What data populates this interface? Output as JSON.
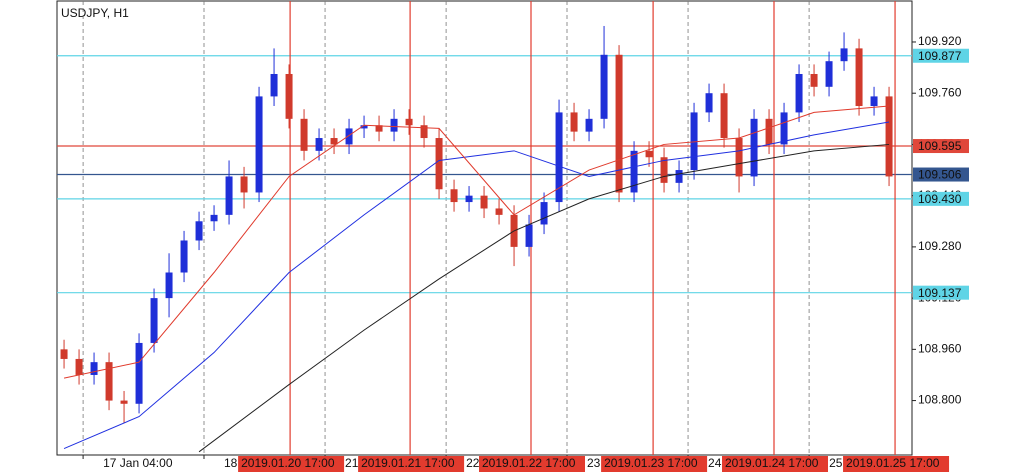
{
  "chart_data": {
    "type": "candlestick",
    "title": "USDJPY, H1",
    "ylim": [
      108.63,
      110.048
    ],
    "xlim": [
      -0.47,
      56.53
    ],
    "yticks": [
      {
        "value": 109.92,
        "label": "109.920"
      },
      {
        "value": 109.76,
        "label": "109.760"
      },
      {
        "value": 109.6,
        "label": "109.600"
      },
      {
        "value": 109.44,
        "label": "109.440"
      },
      {
        "value": 109.28,
        "label": "109.280"
      },
      {
        "value": 109.12,
        "label": "109.120"
      },
      {
        "value": 108.96,
        "label": "108.960"
      },
      {
        "value": 108.8,
        "label": "108.800"
      }
    ],
    "xticks": [
      {
        "value": 1.27,
        "label": "17 Jan 04:00"
      },
      {
        "value": 9.33,
        "label": "18"
      },
      {
        "value": 17.4,
        "label": "21"
      },
      {
        "value": 25.47,
        "label": "22"
      },
      {
        "value": 33.53,
        "label": "23"
      },
      {
        "value": 41.6,
        "label": "24"
      },
      {
        "value": 49.67,
        "label": "25"
      }
    ],
    "grid": true,
    "up_color": "#1f2fd8",
    "down_color": "#d03a2c",
    "candles": [
      [
        108.96,
        108.99,
        108.9,
        108.93
      ],
      [
        108.93,
        108.96,
        108.85,
        108.88
      ],
      [
        108.88,
        108.95,
        108.85,
        108.92
      ],
      [
        108.92,
        108.95,
        108.77,
        108.8
      ],
      [
        108.8,
        108.83,
        108.73,
        108.79
      ],
      [
        108.79,
        109.01,
        108.76,
        108.98
      ],
      [
        108.98,
        109.15,
        108.95,
        109.12
      ],
      [
        109.12,
        109.26,
        109.06,
        109.2
      ],
      [
        109.2,
        109.33,
        109.17,
        109.3
      ],
      [
        109.3,
        109.39,
        109.27,
        109.36
      ],
      [
        109.36,
        109.41,
        109.33,
        109.38
      ],
      [
        109.38,
        109.55,
        109.35,
        109.5
      ],
      [
        109.5,
        109.53,
        109.4,
        109.45
      ],
      [
        109.45,
        109.78,
        109.42,
        109.75
      ],
      [
        109.75,
        109.9,
        109.72,
        109.82
      ],
      [
        109.82,
        109.85,
        109.65,
        109.68
      ],
      [
        109.68,
        109.71,
        109.55,
        109.58
      ],
      [
        109.58,
        109.65,
        109.55,
        109.62
      ],
      [
        109.62,
        109.65,
        109.57,
        109.6
      ],
      [
        109.6,
        109.68,
        109.57,
        109.65
      ],
      [
        109.65,
        109.69,
        109.62,
        109.66
      ],
      [
        109.66,
        109.69,
        109.61,
        109.64
      ],
      [
        109.64,
        109.71,
        109.61,
        109.68
      ],
      [
        109.68,
        109.71,
        109.63,
        109.66
      ],
      [
        109.66,
        109.69,
        109.59,
        109.62
      ],
      [
        109.62,
        109.65,
        109.43,
        109.46
      ],
      [
        109.46,
        109.49,
        109.39,
        109.42
      ],
      [
        109.42,
        109.47,
        109.39,
        109.44
      ],
      [
        109.44,
        109.47,
        109.37,
        109.4
      ],
      [
        109.4,
        109.43,
        109.35,
        109.38
      ],
      [
        109.38,
        109.41,
        109.22,
        109.28
      ],
      [
        109.28,
        109.38,
        109.25,
        109.35
      ],
      [
        109.35,
        109.45,
        109.32,
        109.42
      ],
      [
        109.42,
        109.74,
        109.39,
        109.7
      ],
      [
        109.7,
        109.73,
        109.61,
        109.64
      ],
      [
        109.64,
        109.71,
        109.61,
        109.68
      ],
      [
        109.68,
        109.97,
        109.65,
        109.88
      ],
      [
        109.88,
        109.91,
        109.42,
        109.45
      ],
      [
        109.45,
        109.61,
        109.42,
        109.58
      ],
      [
        109.58,
        109.61,
        109.53,
        109.56
      ],
      [
        109.56,
        109.59,
        109.45,
        109.48
      ],
      [
        109.48,
        109.55,
        109.45,
        109.52
      ],
      [
        109.52,
        109.73,
        109.49,
        109.7
      ],
      [
        109.7,
        109.79,
        109.67,
        109.76
      ],
      [
        109.76,
        109.79,
        109.59,
        109.62
      ],
      [
        109.62,
        109.65,
        109.45,
        109.5
      ],
      [
        109.5,
        109.71,
        109.47,
        109.68
      ],
      [
        109.68,
        109.71,
        109.57,
        109.6
      ],
      [
        109.6,
        109.73,
        109.57,
        109.7
      ],
      [
        109.7,
        109.85,
        109.67,
        109.82
      ],
      [
        109.82,
        109.85,
        109.75,
        109.78
      ],
      [
        109.78,
        109.89,
        109.75,
        109.86
      ],
      [
        109.86,
        109.95,
        109.83,
        109.9
      ],
      [
        109.9,
        109.93,
        109.69,
        109.72
      ],
      [
        109.72,
        109.78,
        109.69,
        109.75
      ],
      [
        109.75,
        109.78,
        109.47,
        109.5
      ]
    ],
    "series": [
      {
        "color": "#2030e0",
        "x": [
          0,
          5,
          10,
          15,
          20,
          25,
          30,
          35,
          40,
          45,
          50,
          55
        ],
        "values": [
          108.65,
          108.75,
          108.95,
          109.2,
          109.38,
          109.55,
          109.58,
          109.5,
          109.55,
          109.58,
          109.63,
          109.67
        ]
      },
      {
        "color": "#e03a2c",
        "x": [
          0,
          5,
          10,
          15,
          20,
          25,
          30,
          35,
          40,
          45,
          50,
          55
        ],
        "values": [
          108.87,
          108.92,
          109.2,
          109.5,
          109.66,
          109.65,
          109.38,
          109.52,
          109.6,
          109.62,
          109.7,
          109.72
        ]
      },
      {
        "color": "#222222",
        "x": [
          9,
          15,
          20,
          25,
          30,
          35,
          40,
          45,
          50,
          55
        ],
        "values": [
          108.64,
          108.85,
          109.02,
          109.18,
          109.33,
          109.43,
          109.5,
          109.54,
          109.58,
          109.6
        ]
      }
    ],
    "levels": [
      {
        "value": 109.877,
        "label": "109.877",
        "color": "#5fd4e6"
      },
      {
        "value": 109.595,
        "label": "109.595",
        "color": "#e0473a"
      },
      {
        "value": 109.506,
        "label": "109.506",
        "color": "#34568f"
      },
      {
        "value": 109.43,
        "label": "109.430",
        "color": "#5fd4e6"
      },
      {
        "value": 109.137,
        "label": "109.137",
        "color": "#5fd4e6"
      }
    ],
    "vlines": [
      {
        "value": 15.07,
        "label": "2019.01.20 17:00"
      },
      {
        "value": 23.07,
        "label": "2019.01.21 17:00"
      },
      {
        "value": 31.13,
        "label": "2019.01.22 17:00"
      },
      {
        "value": 39.27,
        "label": "2019.01.23 17:00"
      },
      {
        "value": 47.33,
        "label": "2019.01.24 17:00"
      },
      {
        "value": 55.4,
        "label": "2019.01.25 17:00"
      }
    ],
    "vline_color": "#e23b2e"
  }
}
